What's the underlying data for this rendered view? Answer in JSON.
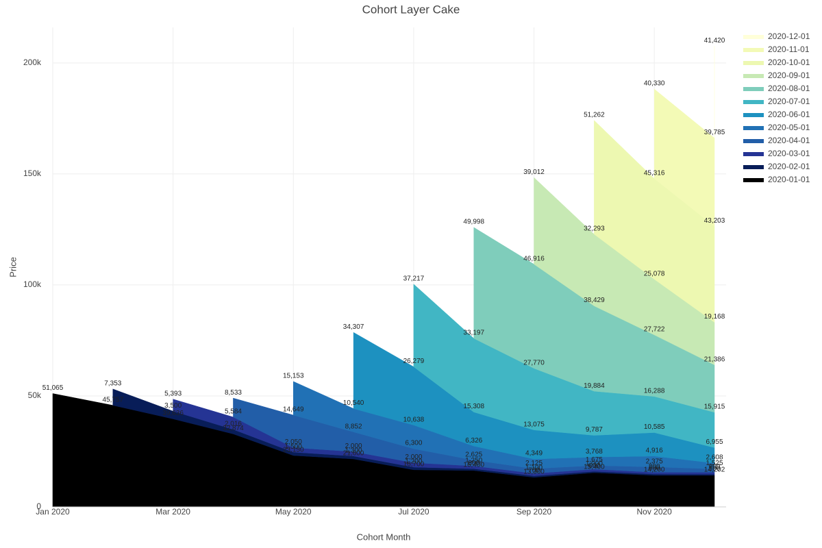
{
  "chart_data": {
    "type": "stacked_area",
    "title": "Cohort Layer Cake",
    "x_label": "Cohort Month",
    "y_label": "Price",
    "x": [
      "2020-01",
      "2020-02",
      "2020-03",
      "2020-04",
      "2020-05",
      "2020-06",
      "2020-07",
      "2020-08",
      "2020-09",
      "2020-10",
      "2020-11",
      "2020-12"
    ],
    "xlim": [
      "2020-01",
      "2020-12"
    ],
    "xticks": [
      {
        "value": "2020-01",
        "label": "Jan 2020"
      },
      {
        "value": "2020-03",
        "label": "Mar 2020"
      },
      {
        "value": "2020-05",
        "label": "May 2020"
      },
      {
        "value": "2020-07",
        "label": "Jul 2020"
      },
      {
        "value": "2020-09",
        "label": "Sep 2020"
      },
      {
        "value": "2020-11",
        "label": "Nov 2020"
      }
    ],
    "ylim": [
      0,
      216000
    ],
    "yticks": [
      0,
      {
        "value": 50000,
        "label": "50k"
      },
      {
        "value": 100000,
        "label": "100k"
      },
      {
        "value": 150000,
        "label": "150k"
      },
      {
        "value": 200000,
        "label": "200k"
      }
    ],
    "grid": true,
    "series": [
      {
        "name": "2020-01-01",
        "color": "#000000",
        "values": [
          51065,
          45757,
          39636,
          32874,
          23150,
          21600,
          16700,
          16400,
          13300,
          15400,
          14200,
          14202
        ],
        "value_labels": [
          "51,065",
          "45,757",
          "39,636",
          "32,874",
          "23,150",
          "21,600",
          "16,700",
          "16,400",
          "13,300",
          "15,400",
          "14,200",
          "14,202"
        ]
      },
      {
        "name": "2020-02-01",
        "color": "#081d58",
        "values": [
          null,
          7353,
          3500,
          2016,
          1500,
          1300,
          1200,
          800,
          700,
          600,
          600,
          500
        ],
        "value_labels": [
          null,
          "7,353",
          "3,500",
          "2,016",
          "1,500",
          "1,300",
          "1,200",
          "800",
          "700",
          "600",
          "600",
          "500"
        ]
      },
      {
        "name": "2020-03-01",
        "color": "#253494",
        "values": [
          null,
          null,
          5393,
          5584,
          2050,
          2000,
          2000,
          1250,
          1100,
          1000,
          800,
          900
        ],
        "value_labels": [
          null,
          null,
          "5,393",
          "5,584",
          "2,050",
          "2,000",
          "2,000",
          "1,250",
          "1,100",
          "1,000",
          "800",
          "900"
        ]
      },
      {
        "name": "2020-04-01",
        "color": "#225ea8",
        "values": [
          null,
          null,
          null,
          8533,
          14649,
          8852,
          6300,
          2625,
          2125,
          1675,
          2375,
          1525
        ],
        "value_labels": [
          null,
          null,
          null,
          "8,533",
          "14,649",
          "8,852",
          "6,300",
          "2,625",
          "2,125",
          "1,675",
          "2,375",
          "1,525"
        ]
      },
      {
        "name": "2020-05-01",
        "color": "#2171b5",
        "values": [
          null,
          null,
          null,
          null,
          15153,
          10540,
          10638,
          6326,
          4349,
          3768,
          4916,
          2608
        ],
        "value_labels": [
          null,
          null,
          null,
          null,
          "15,153",
          "10,540",
          "10,638",
          "6,326",
          "4,349",
          "3,768",
          "4,916",
          "2,608"
        ]
      },
      {
        "name": "2020-06-01",
        "color": "#1d91c0",
        "values": [
          null,
          null,
          null,
          null,
          null,
          34307,
          26279,
          15308,
          13075,
          9787,
          10585,
          6955
        ],
        "value_labels": [
          null,
          null,
          null,
          null,
          null,
          "34,307",
          "26,279",
          "15,308",
          "13,075",
          "9,787",
          "10,585",
          "6,955"
        ]
      },
      {
        "name": "2020-07-01",
        "color": "#41b6c4",
        "values": [
          null,
          null,
          null,
          null,
          null,
          null,
          37217,
          33197,
          27770,
          19884,
          16288,
          15915
        ],
        "value_labels": [
          null,
          null,
          null,
          null,
          null,
          null,
          "37,217",
          "33,197",
          "27,770",
          "19,884",
          "16,288",
          "15,915"
        ]
      },
      {
        "name": "2020-08-01",
        "color": "#7fcdbb",
        "values": [
          null,
          null,
          null,
          null,
          null,
          null,
          null,
          49998,
          46916,
          38429,
          27722,
          21386
        ],
        "value_labels": [
          null,
          null,
          null,
          null,
          null,
          null,
          null,
          "49,998",
          "46,916",
          "38,429",
          "27,722",
          "21,386"
        ]
      },
      {
        "name": "2020-09-01",
        "color": "#c7e9b4",
        "values": [
          null,
          null,
          null,
          null,
          null,
          null,
          null,
          null,
          39012,
          32293,
          25078,
          19168
        ],
        "value_labels": [
          null,
          null,
          null,
          null,
          null,
          null,
          null,
          null,
          "39,012",
          "32,293",
          "25,078",
          "19,168"
        ]
      },
      {
        "name": "2020-10-01",
        "color": "#edf8b1",
        "values": [
          null,
          null,
          null,
          null,
          null,
          null,
          null,
          null,
          null,
          51262,
          45316,
          43203
        ],
        "value_labels": [
          null,
          null,
          null,
          null,
          null,
          null,
          null,
          null,
          null,
          "51,262",
          "45,316",
          "43,203"
        ]
      },
      {
        "name": "2020-11-01",
        "color": "#f3fab6",
        "values": [
          null,
          null,
          null,
          null,
          null,
          null,
          null,
          null,
          null,
          null,
          40330,
          39785
        ],
        "value_labels": [
          null,
          null,
          null,
          null,
          null,
          null,
          null,
          null,
          null,
          null,
          "40,330",
          "39,785"
        ]
      },
      {
        "name": "2020-12-01",
        "color": "#ffffd9",
        "values": [
          null,
          null,
          null,
          null,
          null,
          null,
          null,
          null,
          null,
          null,
          null,
          41420
        ],
        "value_labels": [
          null,
          null,
          null,
          null,
          null,
          null,
          null,
          null,
          null,
          null,
          null,
          "41,420"
        ]
      }
    ]
  }
}
